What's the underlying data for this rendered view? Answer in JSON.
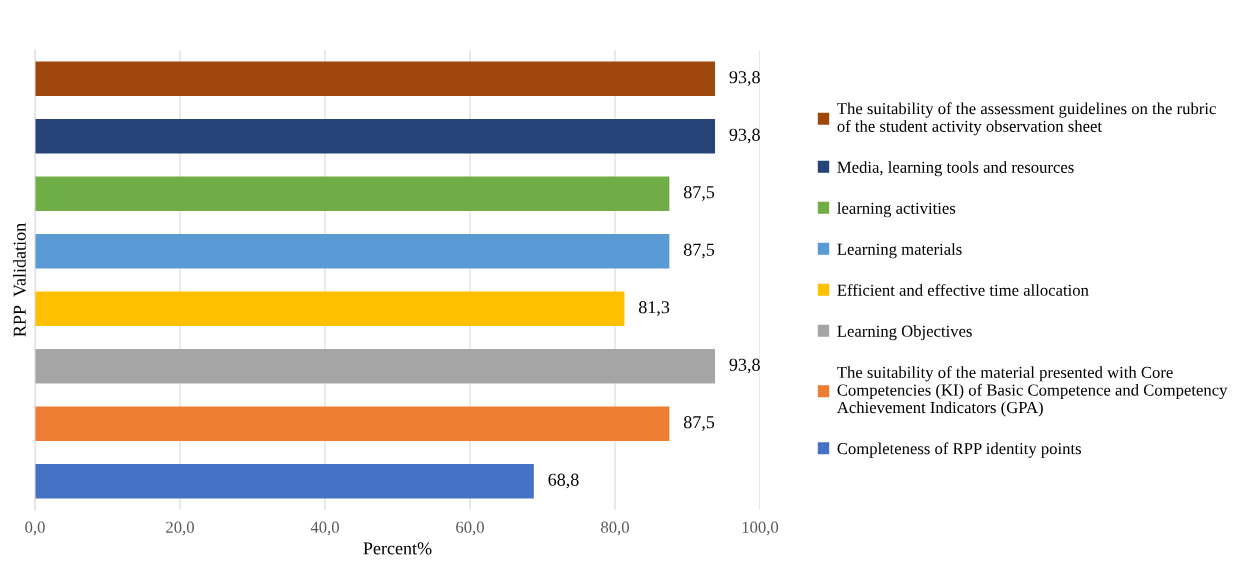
{
  "chart_data": {
    "type": "bar",
    "orientation": "horizontal",
    "xlabel": "Percent%",
    "ylabel": "RPP  Validation",
    "categories": [
      null,
      null,
      null,
      null,
      null,
      null,
      null,
      null
    ],
    "series": [
      {
        "name": "The suitability of the assessment guidelines on the rubric of the student activity observation sheet",
        "color": "#9e480e",
        "values": [
          93.8,
          null,
          null,
          null,
          null,
          null,
          null,
          null
        ],
        "value_labels": [
          "93,8",
          null,
          null,
          null,
          null,
          null,
          null,
          null
        ]
      },
      {
        "name": "Media, learning tools and resources",
        "color": "#264478",
        "values": [
          null,
          93.8,
          null,
          null,
          null,
          null,
          null,
          null
        ],
        "value_labels": [
          null,
          "93,8",
          null,
          null,
          null,
          null,
          null,
          null
        ]
      },
      {
        "name": "learning activities",
        "color": "#70ad47",
        "values": [
          null,
          null,
          87.5,
          null,
          null,
          null,
          null,
          null
        ],
        "value_labels": [
          null,
          null,
          "87,5",
          null,
          null,
          null,
          null,
          null
        ]
      },
      {
        "name": "Learning materials",
        "color": "#5b9bd5",
        "values": [
          null,
          null,
          null,
          87.5,
          null,
          null,
          null,
          null
        ],
        "value_labels": [
          null,
          null,
          null,
          "87,5",
          null,
          null,
          null,
          null
        ]
      },
      {
        "name": "Efficient and effective time allocation",
        "color": "#ffc000",
        "values": [
          null,
          null,
          null,
          null,
          81.3,
          null,
          null,
          null
        ],
        "value_labels": [
          null,
          null,
          null,
          null,
          "81,3",
          null,
          null,
          null
        ]
      },
      {
        "name": "Learning Objectives",
        "color": "#a5a5a5",
        "values": [
          null,
          null,
          null,
          null,
          null,
          93.8,
          null,
          null
        ],
        "value_labels": [
          null,
          null,
          null,
          null,
          null,
          "93,8",
          null,
          null
        ]
      },
      {
        "name": "The suitability of the material presented with Core Competencies (KI) of Basic Competence and Competency Achievement Indicators (GPA)",
        "color": "#ed7d31",
        "values": [
          null,
          null,
          null,
          null,
          null,
          null,
          87.5,
          null
        ],
        "value_labels": [
          null,
          null,
          null,
          null,
          null,
          null,
          "87,5",
          null
        ]
      },
      {
        "name": "Completeness of RPP identity points",
        "color": "#4472c4",
        "values": [
          null,
          null,
          null,
          null,
          null,
          null,
          null,
          68.8
        ],
        "value_labels": [
          null,
          null,
          null,
          null,
          null,
          null,
          null,
          "68,8"
        ]
      }
    ],
    "xlim": [
      0,
      100
    ],
    "xticks": [
      {
        "value": 0,
        "label": "0,0"
      },
      {
        "value": 20,
        "label": "20,0"
      },
      {
        "value": 40,
        "label": "40,0"
      },
      {
        "value": 60,
        "label": "60,0"
      },
      {
        "value": 80,
        "label": "80,0"
      },
      {
        "value": 100,
        "label": "100,0"
      }
    ],
    "grid": "x",
    "legend": "right"
  }
}
